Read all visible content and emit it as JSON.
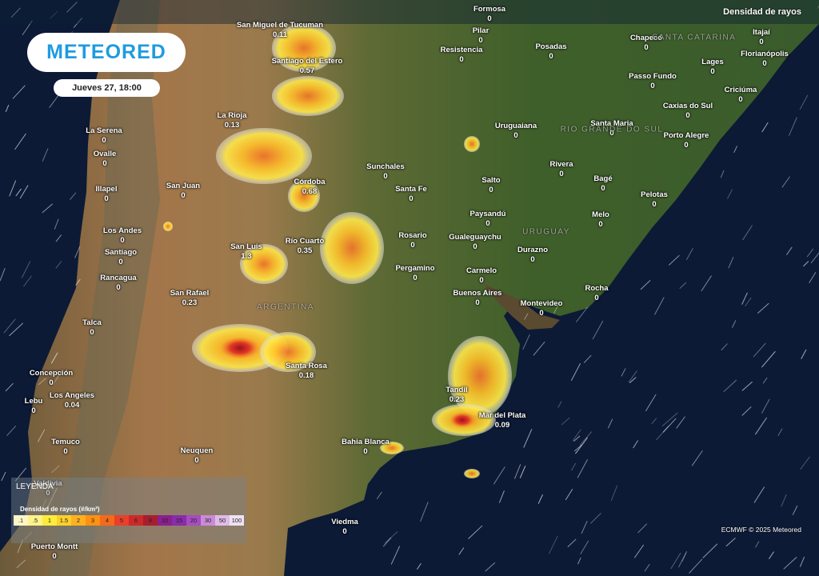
{
  "header": {
    "layer": "Densidad de rayos",
    "logo": "METEORED",
    "date": "Jueves 27, 18:00"
  },
  "regions": [
    "SANTA CATARINA",
    "RIO GRANDE DO SUL",
    "URUGUAY",
    "ARGENTINA"
  ],
  "cities": [
    {
      "name": "Formosa",
      "value": "0"
    },
    {
      "name": "San Miguel de Tucuman",
      "value": "0.11"
    },
    {
      "name": "Pilar",
      "value": "0"
    },
    {
      "name": "Resistencia",
      "value": "0"
    },
    {
      "name": "Posadas",
      "value": "0"
    },
    {
      "name": "Chapecó",
      "value": "0"
    },
    {
      "name": "Itajaí",
      "value": "0"
    },
    {
      "name": "Lages",
      "value": "0"
    },
    {
      "name": "Florianópolis",
      "value": "0"
    },
    {
      "name": "Santiago del Estero",
      "value": "0.57"
    },
    {
      "name": "Passo Fundo",
      "value": "0"
    },
    {
      "name": "Criciúma",
      "value": "0"
    },
    {
      "name": "La Rioja",
      "value": "0.13"
    },
    {
      "name": "Caxias do Sul",
      "value": "0"
    },
    {
      "name": "La Serena",
      "value": "0"
    },
    {
      "name": "Uruguaiana",
      "value": "0"
    },
    {
      "name": "Santa Maria",
      "value": "0"
    },
    {
      "name": "Porto Alegre",
      "value": "0"
    },
    {
      "name": "Ovalle",
      "value": "0"
    },
    {
      "name": "Sunchales",
      "value": "0"
    },
    {
      "name": "Rivera",
      "value": "0"
    },
    {
      "name": "Córdoba",
      "value": "0.68"
    },
    {
      "name": "Salto",
      "value": "0"
    },
    {
      "name": "Bagé",
      "value": "0"
    },
    {
      "name": "Illapel",
      "value": "0"
    },
    {
      "name": "San Juan",
      "value": "0"
    },
    {
      "name": "Santa Fe",
      "value": "0"
    },
    {
      "name": "Pelotas",
      "value": "0"
    },
    {
      "name": "Paysandú",
      "value": "0"
    },
    {
      "name": "Melo",
      "value": "0"
    },
    {
      "name": "Los Andes",
      "value": "0"
    },
    {
      "name": "Rosario",
      "value": "0"
    },
    {
      "name": "Gualeguaychu",
      "value": "0"
    },
    {
      "name": "Santiago",
      "value": "0"
    },
    {
      "name": "San Luis",
      "value": "1.3"
    },
    {
      "name": "Río Cuarto",
      "value": "0.35"
    },
    {
      "name": "Pergamino",
      "value": "0"
    },
    {
      "name": "Durazno",
      "value": "0"
    },
    {
      "name": "Carmelo",
      "value": "0"
    },
    {
      "name": "Rancagua",
      "value": "0"
    },
    {
      "name": "Buenos Aires",
      "value": "0"
    },
    {
      "name": "Rocha",
      "value": "0"
    },
    {
      "name": "San Rafael",
      "value": "0.23"
    },
    {
      "name": "Montevideo",
      "value": "0"
    },
    {
      "name": "Talca",
      "value": "0"
    },
    {
      "name": "Santa Rosa",
      "value": "0.18"
    },
    {
      "name": "Concepción",
      "value": "0"
    },
    {
      "name": "Tandil",
      "value": "0.23"
    },
    {
      "name": "Los Angeles",
      "value": "0.04"
    },
    {
      "name": "Lebu",
      "value": "0"
    },
    {
      "name": "Mar del Plata",
      "value": "0.09"
    },
    {
      "name": "Temuco",
      "value": "0"
    },
    {
      "name": "Bahia Blanca",
      "value": "0"
    },
    {
      "name": "Neuquen",
      "value": "0"
    },
    {
      "name": "Valdivia",
      "value": "0"
    },
    {
      "name": "Viedma",
      "value": "0"
    },
    {
      "name": "Puerto Montt",
      "value": "0"
    }
  ],
  "legend": {
    "title": "LEYENDA",
    "subtitle": "Densidad de rayos (#/km²)",
    "items": [
      {
        "label": ".1",
        "color": "#fbf7c4"
      },
      {
        "label": ".5",
        "color": "#fff38a"
      },
      {
        "label": "1",
        "color": "#ffeb3b"
      },
      {
        "label": "1.5",
        "color": "#fdd02a"
      },
      {
        "label": "2",
        "color": "#ffb020"
      },
      {
        "label": "3",
        "color": "#ff9010"
      },
      {
        "label": "4",
        "color": "#f56a1a"
      },
      {
        "label": "5",
        "color": "#e8402a"
      },
      {
        "label": "6",
        "color": "#cc2a2a"
      },
      {
        "label": "8",
        "color": "#a81e2e"
      },
      {
        "label": "10",
        "color": "#8a1f8e"
      },
      {
        "label": "15",
        "color": "#8a2ca8"
      },
      {
        "label": "20",
        "color": "#a64cc0"
      },
      {
        "label": "30",
        "color": "#c98ad8"
      },
      {
        "label": "50",
        "color": "#dfbbe8"
      },
      {
        "label": "100",
        "color": "#efe1f3"
      }
    ]
  },
  "credit": "ECMWF © 2025 Meteored"
}
